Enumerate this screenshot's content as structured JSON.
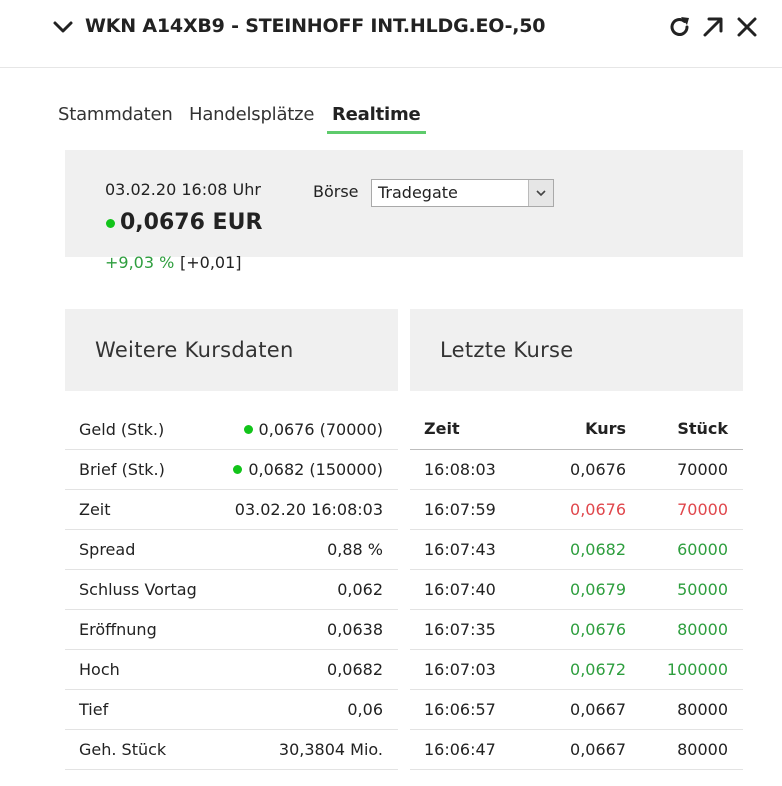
{
  "header": {
    "title": "WKN A14XB9 - STEINHOFF INT.HLDG.EO-,50",
    "icons": [
      "chevron-down-icon",
      "refresh-icon",
      "open-external-icon",
      "close-icon"
    ]
  },
  "tabs": [
    {
      "label": "Stammdaten",
      "active": false
    },
    {
      "label": "Handelsplätze",
      "active": false
    },
    {
      "label": "Realtime",
      "active": true
    }
  ],
  "quote": {
    "datetime": "03.02.20  16:08 Uhr",
    "price": "0,0676 EUR",
    "change_pct": "+9,03 %",
    "change_abs": "[+0,01]",
    "boerse_label": "Börse",
    "boerse_value": "Tradegate"
  },
  "kursdaten": {
    "title": "Weitere Kursdaten",
    "rows": [
      {
        "label": "Geld (Stk.)",
        "value": "0,0676 (70000)",
        "dot": true
      },
      {
        "label": "Brief (Stk.)",
        "value": "0,0682 (150000)",
        "dot": true
      },
      {
        "label": "Zeit",
        "value": "03.02.20 16:08:03",
        "dot": false
      },
      {
        "label": "Spread",
        "value": "0,88 %",
        "dot": false
      },
      {
        "label": "Schluss Vortag",
        "value": "0,062",
        "dot": false
      },
      {
        "label": "Eröffnung",
        "value": "0,0638",
        "dot": false
      },
      {
        "label": "Hoch",
        "value": "0,0682",
        "dot": false
      },
      {
        "label": "Tief",
        "value": "0,06",
        "dot": false
      },
      {
        "label": "Geh. Stück",
        "value": "30,3804 Mio.",
        "dot": false
      }
    ]
  },
  "letzte_kurse": {
    "title": "Letzte Kurse",
    "columns": [
      "Zeit",
      "Kurs",
      "Stück"
    ],
    "rows": [
      {
        "zeit": "16:08:03",
        "kurs": "0,0676",
        "stueck": "70000",
        "trend": "neutral"
      },
      {
        "zeit": "16:07:59",
        "kurs": "0,0676",
        "stueck": "70000",
        "trend": "down"
      },
      {
        "zeit": "16:07:43",
        "kurs": "0,0682",
        "stueck": "60000",
        "trend": "up"
      },
      {
        "zeit": "16:07:40",
        "kurs": "0,0679",
        "stueck": "50000",
        "trend": "up"
      },
      {
        "zeit": "16:07:35",
        "kurs": "0,0676",
        "stueck": "80000",
        "trend": "up"
      },
      {
        "zeit": "16:07:03",
        "kurs": "0,0672",
        "stueck": "100000",
        "trend": "up"
      },
      {
        "zeit": "16:06:57",
        "kurs": "0,0667",
        "stueck": "80000",
        "trend": "neutral"
      },
      {
        "zeit": "16:06:47",
        "kurs": "0,0667",
        "stueck": "80000",
        "trend": "neutral"
      }
    ]
  },
  "colors": {
    "up": "#2e9e3e",
    "down": "#e0474c",
    "neutral": "#222222",
    "accent": "#5ecb6c",
    "live_dot": "#12c41a"
  }
}
